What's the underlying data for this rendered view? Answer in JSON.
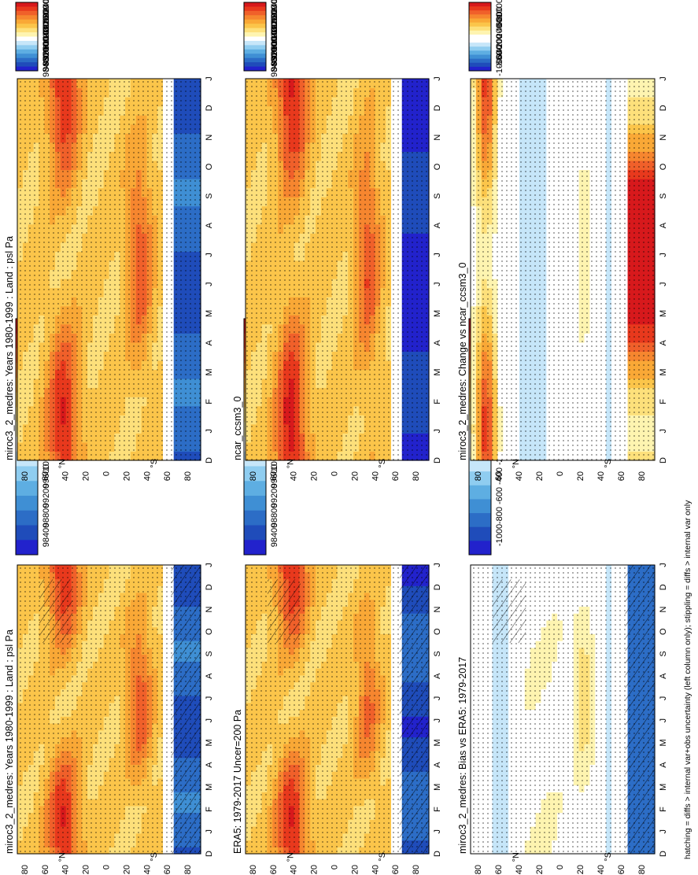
{
  "chart_data": {
    "type": "heatmap",
    "figure_note": "hatching = diffs > internal var+obs uncertainty (left column only); stippling = diffs > internal var only",
    "months": [
      "J",
      "F",
      "M",
      "A",
      "M",
      "J",
      "J",
      "A",
      "S",
      "O",
      "N",
      "D"
    ],
    "month_axis_labels": [
      "D",
      "J",
      "F",
      "M",
      "A",
      "M",
      "J",
      "J",
      "A",
      "S",
      "O",
      "N",
      "D",
      "J"
    ],
    "lat_tick_labels": [
      "80",
      "60",
      "40",
      "20",
      "0",
      "20",
      "40",
      "60",
      "80"
    ],
    "lat_hemisphere_labels": [
      "°N",
      "°S"
    ],
    "lat_range": [
      -90,
      90
    ],
    "units": "Pa",
    "abs_colorbar": {
      "labels": [
        "102400",
        "102000",
        "101600",
        "101200",
        "100800",
        "100400",
        "100000",
        "99600",
        "99200",
        "98800",
        "98400"
      ],
      "colors": [
        "#d7191c",
        "#e8391d",
        "#f0602a",
        "#f6862f",
        "#f9a836",
        "#fbc54a",
        "#fde07b",
        "#fef4b0",
        "#ffffff",
        "#c6e6f9",
        "#8fcdf0",
        "#5eaee2",
        "#3f8fd4",
        "#2c6dc6",
        "#1f4cba",
        "#2222cc"
      ]
    },
    "diff_colorbar": {
      "labels": [
        "1000",
        "800",
        "600",
        "400",
        "200",
        "0",
        "-200",
        "-400",
        "-600",
        "-800",
        "-1000"
      ],
      "colors": [
        "#d7191c",
        "#e8391d",
        "#f0602a",
        "#f6862f",
        "#f9a836",
        "#fbc54a",
        "#fde07b",
        "#fef4b0",
        "#ffffff",
        "#ffffff",
        "#c6e6f9",
        "#8fcdf0",
        "#5eaee2",
        "#3f8fd4",
        "#2c6dc6",
        "#1f4cba",
        "#2222cc"
      ]
    },
    "panels": [
      {
        "id": "model",
        "title": "miroc3_2_medres: Years 1980-1999 : Land : psl Pa",
        "kind": "abs",
        "hatching": true,
        "nh_max": 102400,
        "nh_summer": 101000,
        "sh_max": 102000,
        "sh_summer": 101000,
        "ant_value": 98800
      },
      {
        "id": "model-2",
        "title": "miroc3_2_medres: Years 1980-1999 : Land : psl Pa",
        "kind": "abs",
        "hatching": false,
        "nh_max": 102400,
        "nh_summer": 101000,
        "sh_max": 102000,
        "sh_summer": 101000,
        "ant_value": 98800
      },
      {
        "id": "obs",
        "title": "ERA5: 1979-2017 Uncer=200 Pa",
        "kind": "abs",
        "hatching": true,
        "nh_max": 102400,
        "nh_summer": 101000,
        "sh_max": 101800,
        "sh_summer": 101000,
        "ant_value": 98700
      },
      {
        "id": "ref",
        "title": "ncar_ccsm3_0",
        "kind": "abs",
        "hatching": false,
        "nh_max": 102500,
        "nh_summer": 101100,
        "sh_max": 102000,
        "sh_summer": 101100,
        "ant_value": 98400
      },
      {
        "id": "bias",
        "title": "miroc3_2_medres: Bias vs ERA5: 1979-2017",
        "kind": "diff",
        "hatching": true,
        "high_lat_nh": -300,
        "mid": 150,
        "sh_mid": 300,
        "ant_value": -800
      },
      {
        "id": "change",
        "title": "miroc3_2_medres: Change vs ncar_ccsm3_0",
        "kind": "diff",
        "hatching": false,
        "high_lat_nh_winter": 900,
        "mid": -250,
        "sh_mid": 150,
        "ant_value": 800
      }
    ]
  }
}
